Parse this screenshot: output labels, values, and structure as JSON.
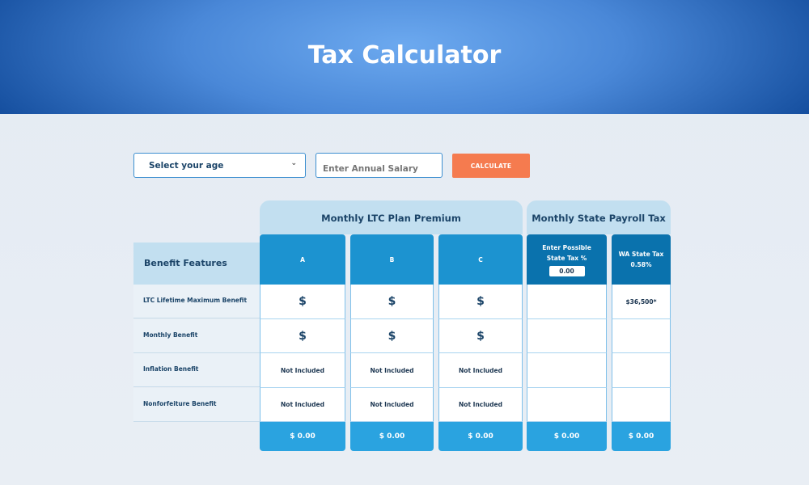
{
  "header": {
    "title": "Tax Calculator"
  },
  "form": {
    "age_select": "Select your age",
    "salary_placeholder": "Enter Annual Salary",
    "calculate_label": "CALCULATE"
  },
  "table": {
    "groups": {
      "ltc": "Monthly LTC Plan Premium",
      "payroll": "Monthly State Payroll Tax"
    },
    "features_header": "Benefit Features",
    "rows": [
      "LTC Lifetime Maximum Benefit",
      "Monthly Benefit",
      "Inflation Benefit",
      "Nonforfeiture Benefit"
    ],
    "columns": [
      {
        "header": "A",
        "cells": [
          "$",
          "$",
          "Not Included",
          "Not Included"
        ],
        "total": "$ 0.00"
      },
      {
        "header": "B",
        "cells": [
          "$",
          "$",
          "Not Included",
          "Not Included"
        ],
        "total": "$ 0.00"
      },
      {
        "header": "C",
        "cells": [
          "$",
          "$",
          "Not Included",
          "Not Included"
        ],
        "total": "$ 0.00"
      },
      {
        "header": "Enter Possible State Tax %",
        "input_value": "0.00",
        "cells": [
          "",
          "",
          "",
          ""
        ],
        "total": "$ 0.00"
      },
      {
        "header": "WA State Tax",
        "subheader": "0.58%",
        "cells": [
          "$36,500*",
          "",
          "",
          ""
        ],
        "total": "$ 0.00"
      }
    ]
  },
  "colors": {
    "header_blue": "#1c93d0",
    "dark_blue": "#0a72ad",
    "footer_blue": "#2aa3e0",
    "button_orange": "#f57b4f"
  }
}
